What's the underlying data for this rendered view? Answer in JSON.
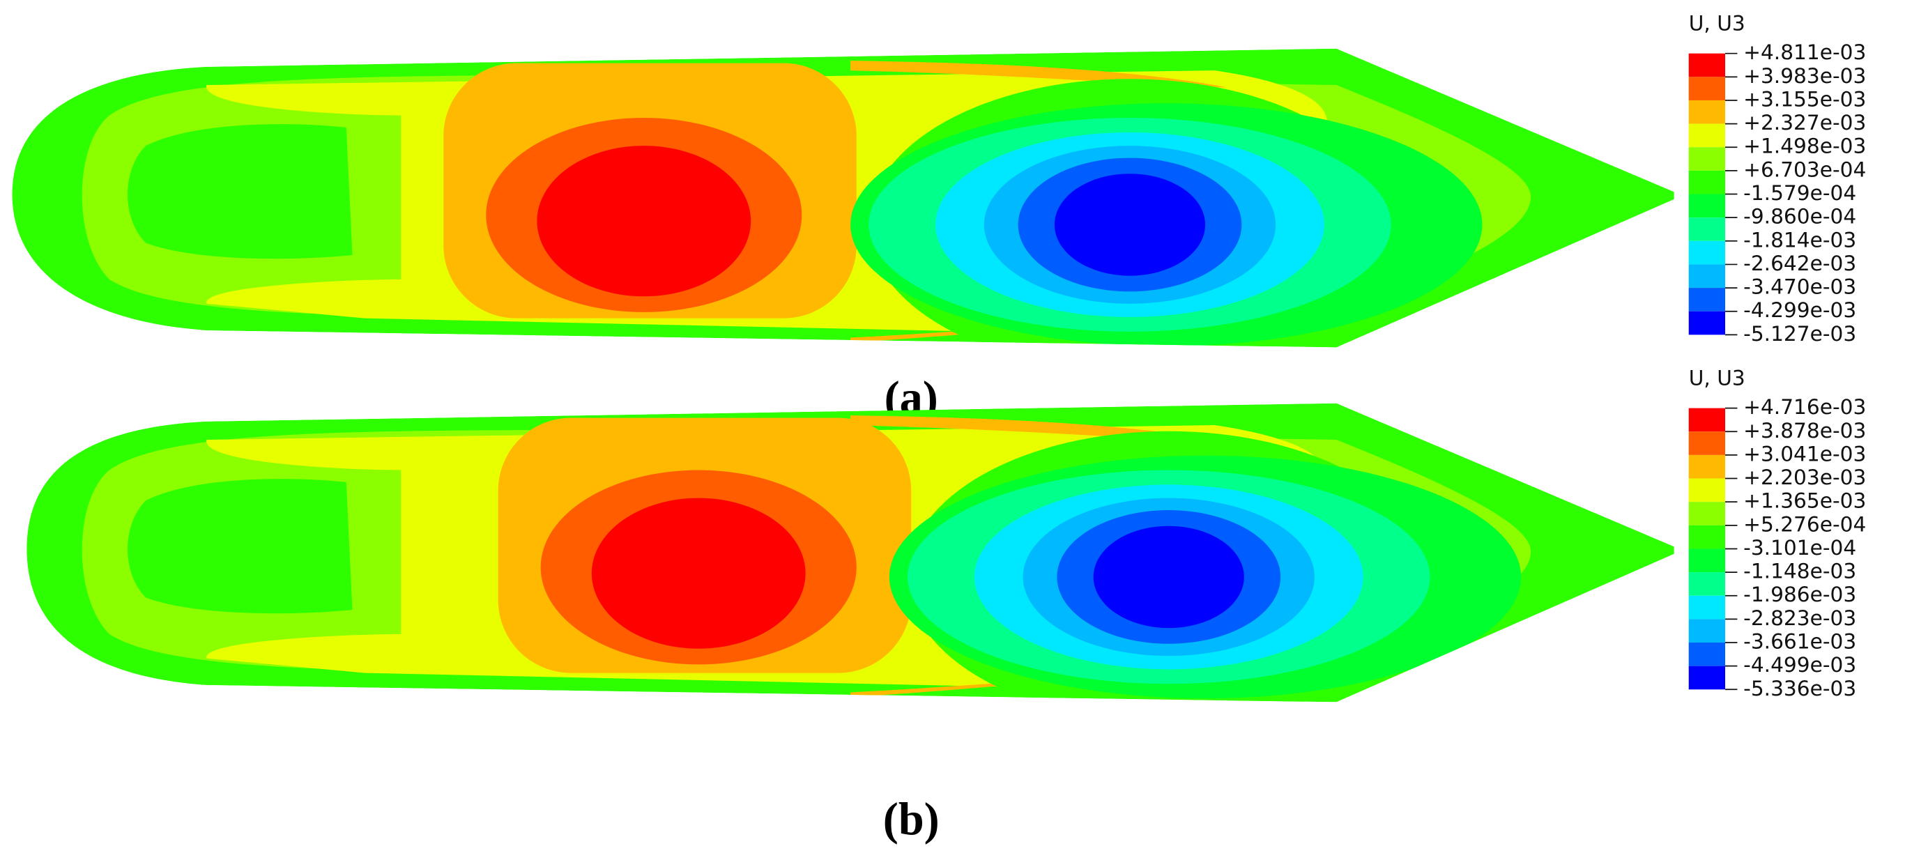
{
  "panels": [
    {
      "caption": "(a)",
      "legend": {
        "title": "U, U3",
        "colors": [
          "#ff0000",
          "#ff5d00",
          "#ffb900",
          "#e8ff00",
          "#8bff00",
          "#2eff00",
          "#00ff2e",
          "#00ff8b",
          "#00e8ff",
          "#00b9ff",
          "#005dff",
          "#0000ff"
        ],
        "labels": [
          "+4.811e-03",
          "+3.983e-03",
          "+3.155e-03",
          "+2.327e-03",
          "+1.498e-03",
          "+6.703e-04",
          "-1.579e-04",
          "-9.860e-04",
          "-1.814e-03",
          "-2.642e-03",
          "-3.470e-03",
          "-4.299e-03",
          "-5.127e-03"
        ]
      }
    },
    {
      "caption": "(b)",
      "legend": {
        "title": "U, U3",
        "colors": [
          "#ff0000",
          "#ff5d00",
          "#ffb900",
          "#e8ff00",
          "#8bff00",
          "#2eff00",
          "#00ff2e",
          "#00ff8b",
          "#00e8ff",
          "#00b9ff",
          "#005dff",
          "#0000ff"
        ],
        "labels": [
          "+4.716e-03",
          "+3.878e-03",
          "+3.041e-03",
          "+2.203e-03",
          "+1.365e-03",
          "+5.276e-04",
          "-3.101e-04",
          "-1.148e-03",
          "-1.986e-03",
          "-2.823e-03",
          "-3.661e-03",
          "-4.499e-03",
          "-5.336e-03"
        ]
      }
    }
  ]
}
